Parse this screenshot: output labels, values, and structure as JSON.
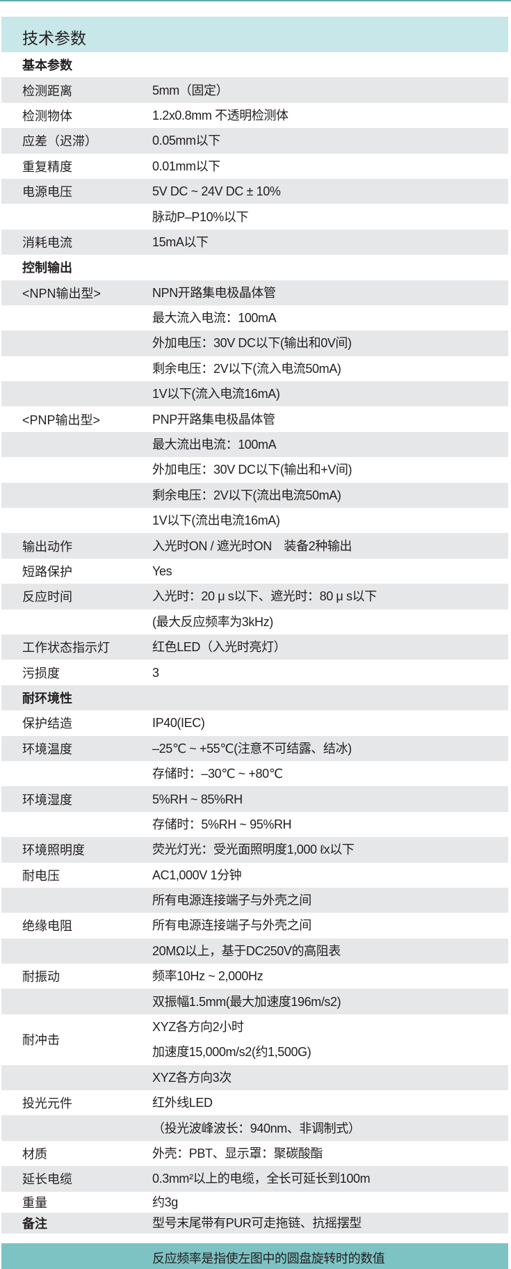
{
  "title": "技术参数",
  "colors": {
    "header_bg": "#c8e7e8",
    "stripe": "#e6e7e8",
    "footer_bg": "#7dc3c4",
    "accent_line": "#5fa9ab"
  },
  "rows": [
    {
      "label": "基本参数",
      "section": true,
      "values": []
    },
    {
      "label": "检测距离",
      "values": [
        "5mm（固定）"
      ]
    },
    {
      "label": "检测物体",
      "values": [
        "1.2x0.8mm 不透明检测体"
      ]
    },
    {
      "label": "应差（迟滞）",
      "values": [
        "0.05mm以下"
      ]
    },
    {
      "label": "重复精度",
      "values": [
        "0.01mm以下"
      ]
    },
    {
      "label": "电源电压",
      "values": [
        "5V DC ~ 24V DC ± 10%"
      ]
    },
    {
      "label": "",
      "values": [
        "脉动P–P10%以下"
      ]
    },
    {
      "label": "消耗电流",
      "values": [
        "15mA以下"
      ]
    },
    {
      "label": "控制输出",
      "section": true,
      "values": []
    },
    {
      "label": "<NPN输出型>",
      "values": [
        "NPN开路集电极晶体管"
      ]
    },
    {
      "label": "",
      "values": [
        "最大流入电流：100mA"
      ]
    },
    {
      "label": "",
      "values": [
        "外加电压：30V DC以下(输出和0V间)"
      ]
    },
    {
      "label": "",
      "values": [
        "剩余电压：2V以下(流入电流50mA)"
      ]
    },
    {
      "label": "",
      "values": [
        "1V以下(流入电流16mA)"
      ]
    },
    {
      "label": "<PNP输出型>",
      "values": [
        "PNP开路集电极晶体管"
      ]
    },
    {
      "label": "",
      "values": [
        "最大流出电流：100mA"
      ]
    },
    {
      "label": "",
      "values": [
        "外加电压：30V DC以下(输出和+V间)"
      ]
    },
    {
      "label": "",
      "values": [
        "剩余电压：2V以下(流出电流50mA)"
      ]
    },
    {
      "label": "",
      "values": [
        "1V以下(流出电流16mA)"
      ]
    },
    {
      "label": "输出动作",
      "values": [
        "入光时ON / 遮光时ON　装备2种输出"
      ]
    },
    {
      "label": "短路保护",
      "values": [
        "Yes"
      ]
    },
    {
      "label": "反应时间",
      "values": [
        "入光时：20 μ s以下、遮光时：80 μ s以下"
      ]
    },
    {
      "label": "",
      "values": [
        "(最大反应频率为3kHz)"
      ]
    },
    {
      "label": "工作状态指示灯",
      "values": [
        "红色LED（入光时亮灯）"
      ]
    },
    {
      "label": "污损度",
      "values": [
        "3"
      ]
    },
    {
      "label": "耐环境性",
      "section": true,
      "values": []
    },
    {
      "label": "保护结造",
      "values": [
        "IP40(IEC)"
      ]
    },
    {
      "label": "环境温度",
      "values": [
        "–25℃ ~ +55℃(注意不可结露、结冰)"
      ]
    },
    {
      "label": "",
      "values": [
        "存储时：–30℃ ~ +80℃"
      ]
    },
    {
      "label": "环境湿度",
      "values": [
        "5%RH ~ 85%RH"
      ]
    },
    {
      "label": "",
      "values": [
        "存储时：5%RH ~ 95%RH"
      ]
    },
    {
      "label": "环境照明度",
      "values": [
        "荧光灯光：受光面照明度1,000 ℓx以下"
      ]
    },
    {
      "label": "耐电压",
      "values": [
        "AC1,000V 1分钟"
      ]
    },
    {
      "label": "",
      "values": [
        "所有电源连接端子与外壳之间"
      ]
    },
    {
      "label": "绝缘电阻",
      "values": [
        "所有电源连接端子与外壳之间"
      ]
    },
    {
      "label": "",
      "values": [
        "20MΩ以上，基于DC250V的高阻表"
      ]
    },
    {
      "label": "耐振动",
      "values": [
        "频率10Hz ~ 2,000Hz"
      ]
    },
    {
      "label": "",
      "values": [
        "双振幅1.5mm(最大加速度196m/s2)"
      ]
    },
    {
      "label": "耐冲击",
      "values": [
        "XYZ各方向2小时",
        "加速度15,000m/s2(约1,500G)"
      ]
    },
    {
      "label": "",
      "values": [
        "XYZ各方向3次"
      ]
    },
    {
      "label": "投光元件",
      "values": [
        "红外线LED"
      ]
    },
    {
      "label": "",
      "values": [
        "（投光波峰波长：940nm、非调制式）"
      ]
    },
    {
      "label": "材质",
      "values": [
        "外壳：PBT、显示罩：聚碳酸酯"
      ]
    },
    {
      "label": "延长电缆",
      "values": [
        "0.3mm²以上的电缆，全长可延长到100m"
      ]
    },
    {
      "label": "重量",
      "values": [
        "约3g"
      ]
    },
    {
      "label": "备注",
      "section": true,
      "values": [
        "型号末尾带有PUR可走拖链、抗摇摆型"
      ]
    }
  ],
  "footer": "反应频率是指使左图中的圆盘旋转时的数值"
}
